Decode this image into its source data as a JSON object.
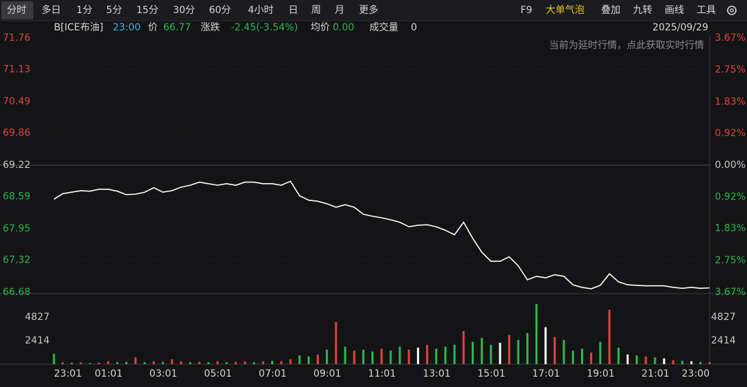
{
  "toolbar": {
    "tabs": [
      "分时",
      "多日",
      "1分",
      "5分",
      "15分",
      "30分",
      "60分",
      "4小时",
      "日",
      "周",
      "月",
      "更多"
    ],
    "tools": [
      "F9",
      "大单气泡",
      "叠加",
      "九转",
      "画线",
      "工具"
    ]
  },
  "info": {
    "symbol": "B[ICE布油]",
    "time": "23:00",
    "price_label": "价",
    "price": "66.77",
    "change_label": "涨跌",
    "change": "-2.45(-3.54%)",
    "avg_label": "均价",
    "avg": "0.00",
    "volume_label": "成交量",
    "volume": "0",
    "date": "2025/09/29",
    "notice": "当前为延时行情，点此获取实时行情"
  },
  "chart_data": [
    {
      "type": "line",
      "color": "#ffffff",
      "x": [
        "23:01",
        "23:20",
        "23:40",
        "00:00",
        "00:20",
        "00:40",
        "01:00",
        "01:20",
        "01:40",
        "02:00",
        "02:20",
        "02:40",
        "03:00",
        "03:20",
        "03:40",
        "04:00",
        "04:20",
        "04:40",
        "05:00",
        "05:20",
        "05:40",
        "06:00",
        "06:20",
        "06:40",
        "07:00",
        "07:20",
        "07:40",
        "08:00",
        "08:20",
        "08:40",
        "09:00",
        "09:20",
        "09:40",
        "10:00",
        "10:20",
        "10:40",
        "11:00",
        "11:20",
        "11:40",
        "12:00",
        "12:20",
        "12:40",
        "13:00",
        "13:20",
        "13:40",
        "14:00",
        "14:20",
        "14:40",
        "15:00",
        "15:20",
        "15:40",
        "16:00",
        "16:20",
        "16:40",
        "17:00",
        "17:20",
        "17:40",
        "18:00",
        "18:20",
        "18:40",
        "19:00",
        "19:20",
        "19:40",
        "20:00",
        "20:20",
        "20:40",
        "21:00",
        "21:20",
        "21:40",
        "22:00",
        "22:20",
        "22:40",
        "23:00"
      ],
      "values": [
        68.54,
        68.65,
        68.68,
        68.71,
        68.7,
        68.74,
        68.74,
        68.7,
        68.63,
        68.64,
        68.68,
        68.77,
        68.68,
        68.71,
        68.78,
        68.82,
        68.88,
        68.85,
        68.82,
        68.85,
        68.82,
        68.88,
        68.88,
        68.85,
        68.85,
        68.82,
        68.9,
        68.61,
        68.52,
        68.5,
        68.45,
        68.38,
        68.43,
        68.38,
        68.24,
        68.2,
        68.17,
        68.13,
        68.08,
        67.99,
        68.02,
        68.03,
        67.99,
        67.92,
        67.83,
        68.08,
        67.76,
        67.48,
        67.3,
        67.3,
        67.39,
        67.21,
        66.93,
        67.0,
        66.97,
        67.03,
        67.0,
        66.83,
        66.78,
        66.75,
        66.82,
        67.05,
        66.89,
        66.83,
        66.82,
        66.81,
        66.81,
        66.81,
        66.78,
        66.76,
        66.78,
        66.76,
        66.77
      ],
      "xlim": [
        "23:01",
        "23:00"
      ],
      "xticks": [
        "23:01",
        "01:01",
        "03:01",
        "05:01",
        "07:01",
        "09:01",
        "11:01",
        "13:01",
        "15:01",
        "17:01",
        "19:01",
        "21:01",
        "23:00"
      ],
      "ylim": [
        66.68,
        71.76
      ],
      "yticks": [
        71.76,
        71.13,
        70.49,
        69.86,
        69.22,
        68.59,
        67.95,
        67.32,
        66.68
      ],
      "y2lim": [
        -3.67,
        3.67
      ],
      "y2ticks": [
        {
          "value": 3.67,
          "label": "3.67%"
        },
        {
          "value": 2.75,
          "label": "2.75%"
        },
        {
          "value": 1.83,
          "label": "1.83%"
        },
        {
          "value": 0.92,
          "label": "0.92%"
        },
        {
          "value": 0,
          "label": "0.00%"
        },
        {
          "value": -0.92,
          "label": "0.92%"
        },
        {
          "value": -1.83,
          "label": "1.83%"
        },
        {
          "value": -2.75,
          "label": "2.75%"
        },
        {
          "value": -3.67,
          "label": "3.67%"
        }
      ],
      "grid": true
    },
    {
      "type": "bar",
      "x": [
        "23:01",
        "23:20",
        "23:40",
        "00:00",
        "00:20",
        "00:40",
        "01:00",
        "01:20",
        "01:40",
        "02:00",
        "02:20",
        "02:40",
        "03:00",
        "03:20",
        "03:40",
        "04:00",
        "04:20",
        "04:40",
        "05:00",
        "05:20",
        "05:40",
        "06:00",
        "06:20",
        "06:40",
        "07:00",
        "07:20",
        "07:40",
        "08:00",
        "08:20",
        "08:40",
        "09:00",
        "09:20",
        "09:40",
        "10:00",
        "10:20",
        "10:40",
        "11:00",
        "11:20",
        "11:40",
        "12:00",
        "12:20",
        "12:40",
        "13:00",
        "13:20",
        "13:40",
        "14:00",
        "14:20",
        "14:40",
        "15:00",
        "15:20",
        "15:40",
        "16:00",
        "16:20",
        "16:40",
        "17:00",
        "17:20",
        "17:40",
        "18:00",
        "18:20",
        "18:40",
        "19:00",
        "19:20",
        "19:40",
        "20:00",
        "20:20",
        "20:40",
        "21:00",
        "21:20",
        "21:40",
        "22:00",
        "22:20",
        "22:40",
        "23:00"
      ],
      "values": [
        1060,
        200,
        150,
        180,
        120,
        150,
        300,
        200,
        250,
        700,
        200,
        300,
        250,
        500,
        300,
        200,
        250,
        200,
        300,
        200,
        250,
        300,
        200,
        300,
        350,
        300,
        500,
        900,
        800,
        1000,
        1500,
        4330,
        1800,
        1400,
        1500,
        1300,
        1600,
        1400,
        1800,
        1500,
        1700,
        2000,
        1600,
        1800,
        2000,
        3400,
        2300,
        2700,
        2000,
        2200,
        3000,
        2500,
        3200,
        6180,
        3800,
        2800,
        2500,
        1400,
        1600,
        1200,
        2300,
        5600,
        1700,
        1000,
        900,
        800,
        700,
        600,
        400,
        350,
        300,
        250,
        200
      ],
      "colors": [
        "#2db84d",
        "#e0443e",
        "#2db84d",
        "#e0443e",
        "#2db84d",
        "#e0443e",
        "#e0443e",
        "#2db84d",
        "#2db84d",
        "#e0443e",
        "#2db84d",
        "#e0443e",
        "#2db84d",
        "#e0443e",
        "#e0443e",
        "#2db84d",
        "#e0443e",
        "#2db84d",
        "#e0443e",
        "#2db84d",
        "#e0443e",
        "#e0443e",
        "#2db84d",
        "#e0443e",
        "#2db84d",
        "#e0443e",
        "#e0443e",
        "#2db84d",
        "#2db84d",
        "#e0443e",
        "#2db84d",
        "#e0443e",
        "#2db84d",
        "#e0443e",
        "#2db84d",
        "#2db84d",
        "#e0443e",
        "#2db84d",
        "#2db84d",
        "#e0443e",
        "#ffffff",
        "#e0443e",
        "#2db84d",
        "#2db84d",
        "#2db84d",
        "#e0443e",
        "#2db84d",
        "#2db84d",
        "#2db84d",
        "#ffffff",
        "#e0443e",
        "#2db84d",
        "#2db84d",
        "#2db84d",
        "#ffffff",
        "#e0443e",
        "#2db84d",
        "#2db84d",
        "#2db84d",
        "#e0443e",
        "#2db84d",
        "#e0443e",
        "#2db84d",
        "#ffffff",
        "#2db84d",
        "#e0443e",
        "#2db84d",
        "#ffffff",
        "#e0443e",
        "#2db84d",
        "#ffffff",
        "#2db84d",
        "#e0443e"
      ],
      "xlim": [
        "23:01",
        "23:00"
      ],
      "ylim": [
        0,
        7242
      ],
      "yticks": [
        2414,
        4827
      ]
    }
  ]
}
